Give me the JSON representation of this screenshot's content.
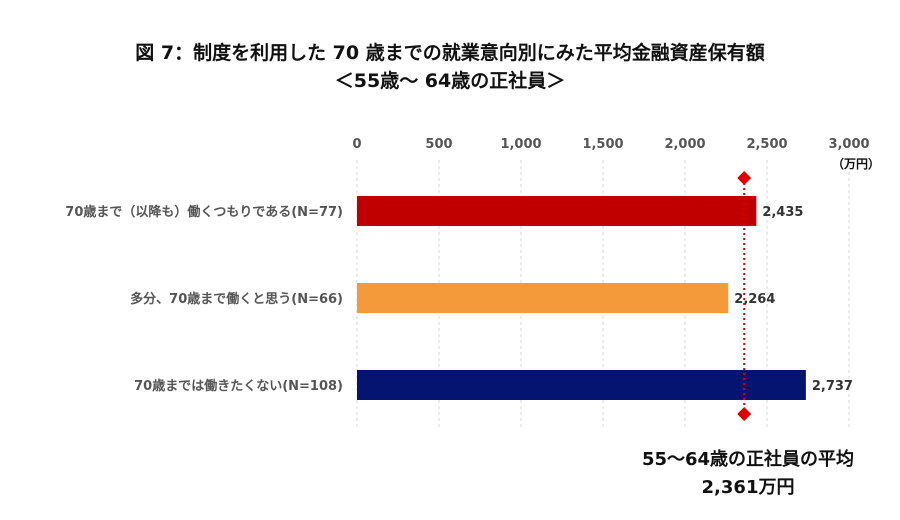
{
  "title_line1": "図 7：制度を利用した 70 歳までの就業意向別にみた平均金融資産保有額",
  "title_line2": "＜55歳～ 64歳の正社員＞",
  "chart_data": {
    "type": "bar",
    "orientation": "horizontal",
    "categories": [
      "70歳まで（以降も）働くつもりである(N=77)",
      "多分、70歳まで働くと思う(N=66)",
      "70歳までは働きたくない(N=108)"
    ],
    "values": [
      2435,
      2264,
      2737
    ],
    "value_labels": [
      "2,435",
      "2,264",
      "2,737"
    ],
    "colors": [
      "#c00000",
      "#f59a3a",
      "#051470"
    ],
    "xlim": [
      0,
      3000
    ],
    "x_ticks": [
      0,
      500,
      1000,
      1500,
      2000,
      2500,
      3000
    ],
    "x_tick_labels": [
      "0",
      "500",
      "1,000",
      "1,500",
      "2,000",
      "2,500",
      "3,000"
    ],
    "x_unit": "（万円）",
    "axis_position": "top",
    "gridlines": "vertical dashed",
    "reference_line": {
      "value": 2361,
      "color": "#e00000",
      "label_line1": "55～64歳の正社員の平均",
      "label_line2": "2,361万円"
    }
  }
}
